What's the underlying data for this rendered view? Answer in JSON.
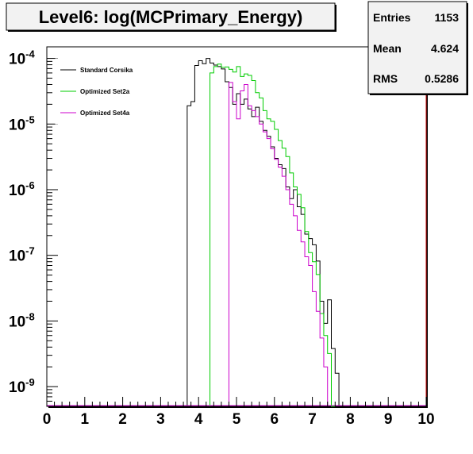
{
  "chart_data": {
    "type": "histogram",
    "title": "Level6:  log(MCPrimary_Energy)",
    "y_scale": "log",
    "xlim": [
      0,
      10
    ],
    "ylim": [
      5e-10,
      0.00015
    ],
    "bins": 100,
    "bin_width": 0.1,
    "x_ticks": [
      "0",
      "1",
      "2",
      "3",
      "4",
      "5",
      "6",
      "7",
      "8",
      "9",
      "10"
    ],
    "y_ticks": [
      {
        "base": "10",
        "exp": "-4",
        "value": 0.0001
      },
      {
        "base": "10",
        "exp": "-5",
        "value": 1e-05
      },
      {
        "base": "10",
        "exp": "-6",
        "value": 1e-06
      },
      {
        "base": "10",
        "exp": "-7",
        "value": 1e-07
      },
      {
        "base": "10",
        "exp": "-8",
        "value": 1e-08
      },
      {
        "base": "10",
        "exp": "-9",
        "value": 1e-09
      }
    ],
    "grid": false,
    "legend_position": "top-left",
    "stats": {
      "entries_label": "Entries",
      "entries": "1153",
      "mean_label": "Mean",
      "mean": "4.624",
      "rms_label": "RMS",
      "rms": "0.5286"
    },
    "series": [
      {
        "name": "Standard Corsika",
        "color": "#000000",
        "start": 3.7,
        "values": [
          1.9e-05,
          2.2e-05,
          7.8e-05,
          9.2e-05,
          8.3e-05,
          0.0001,
          8.5e-05,
          7.9e-05,
          7.5e-05,
          6.9e-05,
          4.4e-05,
          3.6e-05,
          2e-05,
          2.9e-05,
          2e-05,
          2.4e-05,
          1.7e-05,
          1.3e-05,
          1.8e-05,
          1.1e-05,
          8e-06,
          6.5e-06,
          4.5e-06,
          3e-06,
          2.4e-06,
          2.1e-06,
          1.1e-06,
          7.3e-07,
          1e-06,
          5.5e-07,
          4.2e-07,
          2.1e-07,
          1.8e-07,
          1.45e-07,
          8.2e-08,
          2e-08,
          9.2e-09,
          2.1e-08,
          3.8e-09,
          1.6e-09
        ]
      },
      {
        "name": "Optimized Set2a",
        "color": "#00cc00",
        "start": 4.3,
        "values": [
          6e-05,
          7.5e-05,
          8.2e-05,
          7.3e-05,
          7.4e-05,
          6.8e-05,
          6.2e-05,
          7.5e-05,
          5.3e-05,
          5.8e-05,
          5.5e-05,
          4.6e-05,
          3e-05,
          2.5e-05,
          1.6e-05,
          1.2e-05,
          1.1e-05,
          8.3e-06,
          5.6e-06,
          4.3e-06,
          3.2e-06,
          1.8e-06,
          1.1e-06,
          8.5e-07,
          5.3e-07,
          2.3e-07,
          1.1e-07,
          8e-08,
          5.1e-08,
          1.3e-08,
          6e-09,
          3.2e-09,
          5e-10
        ]
      },
      {
        "name": "Optimized Set4a",
        "color": "#cc00cc",
        "start": 4.8,
        "values": [
          4.3e-05,
          2.2e-05,
          1.2e-05,
          3.2e-05,
          4e-05,
          1.9e-05,
          1.6e-05,
          1.3e-05,
          1e-05,
          7.6e-06,
          6e-06,
          4.2e-06,
          2.9e-06,
          2.2e-06,
          1.6e-06,
          1e-06,
          6e-07,
          4e-07,
          2.4e-07,
          1.6e-07,
          9.5e-08,
          7e-08,
          2.8e-08,
          1.4e-08,
          5.5e-09,
          2e-09
        ]
      }
    ]
  }
}
